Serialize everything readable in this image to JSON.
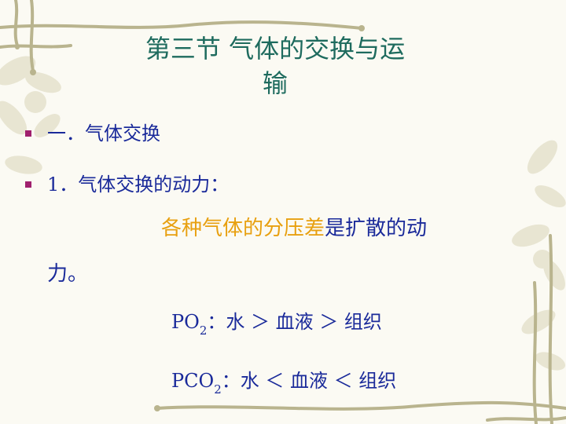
{
  "title": {
    "line1": "第三节 气体的交换与运",
    "line2": "输"
  },
  "bullets": [
    {
      "text": "一．气体交换"
    },
    {
      "text": "1．气体交换的动力："
    }
  ],
  "paragraph": {
    "highlight": "各种气体的分压差",
    "rest": "是扩散的动",
    "wrap": "力。"
  },
  "formulas": [
    {
      "prefix": "PO",
      "sub": "2",
      "relation": "：水 ＞ 血液 ＞ 组织"
    },
    {
      "prefix": "PCO",
      "sub": "2",
      "relation": "：水 ＜ 血液 ＜ 组织"
    }
  ],
  "colors": {
    "title": "#1e6b5e",
    "text": "#1a2a9a",
    "highlight": "#e8a010",
    "bullet": "#a0206e"
  }
}
